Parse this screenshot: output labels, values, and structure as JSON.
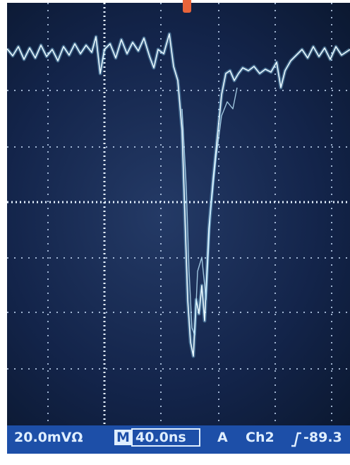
{
  "status_bar": {
    "scale": "20.0mVΩ",
    "mode": "M",
    "timebase": "40.0ns",
    "trigger_mode": "A",
    "channel": "Ch2",
    "trigger_level": "-89.3"
  }
}
